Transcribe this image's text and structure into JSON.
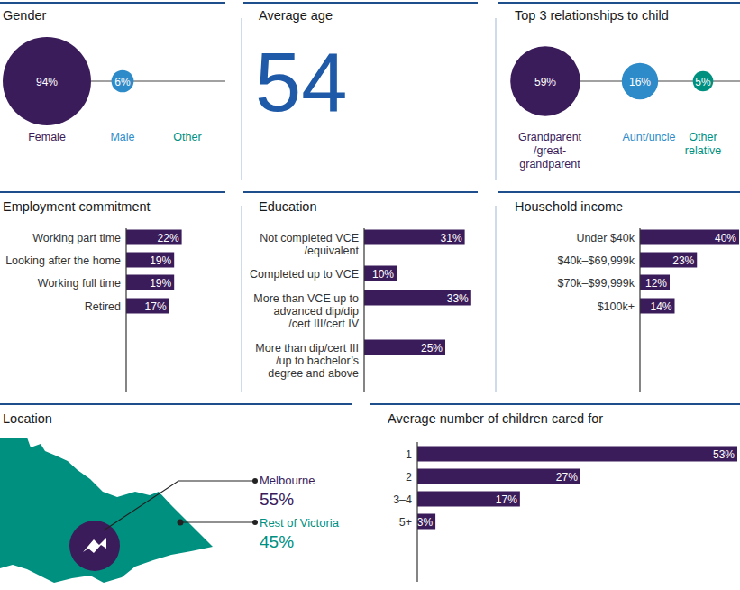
{
  "chart_data": [
    {
      "type": "bubble",
      "title": "Gender",
      "categories": [
        "Female",
        "Male",
        "Other"
      ],
      "values": [
        94,
        6,
        null
      ],
      "value_labels": [
        "94%",
        "6%",
        null
      ],
      "colors": [
        "#3b1c5a",
        "#2e8bc9",
        "#00907f"
      ],
      "data_labels": true
    },
    {
      "type": "stat",
      "title": "Average age",
      "value": 54,
      "color": "#1f5aa8"
    },
    {
      "type": "bubble",
      "title": "Top 3 relationships to child",
      "categories": [
        "Grandparent\n/great-\ngrandparent",
        "Aunt/uncle",
        "Other\nrelative"
      ],
      "values": [
        59,
        16,
        5
      ],
      "value_labels": [
        "59%",
        "16%",
        "5%"
      ],
      "colors": [
        "#3b1c5a",
        "#2e8bc9",
        "#00907f"
      ],
      "data_labels": true
    },
    {
      "type": "bar",
      "orientation": "horizontal",
      "title": "Employment commitment",
      "categories": [
        "Working part time",
        "Looking after the home",
        "Working full time",
        "Retired"
      ],
      "values": [
        22,
        19,
        19,
        17
      ],
      "value_labels": [
        "22%",
        "19%",
        "19%",
        "17%"
      ],
      "color": "#3b1c5a",
      "xlim": [
        0,
        40
      ],
      "tick_labels": false,
      "data_labels": true
    },
    {
      "type": "bar",
      "orientation": "horizontal",
      "title": "Education",
      "categories": [
        "Not completed VCE\n/equivalent",
        "Completed up to VCE",
        "More than VCE up to\nadvanced dip/dip\n/cert III/cert IV",
        "More than dip/cert III\n/up to bachelor’s\ndegree and above"
      ],
      "values": [
        31,
        10,
        33,
        25
      ],
      "value_labels": [
        "31%",
        "10%",
        "33%",
        "25%"
      ],
      "color": "#3b1c5a",
      "xlim": [
        0,
        35
      ],
      "tick_labels": false,
      "data_labels": true
    },
    {
      "type": "bar",
      "orientation": "horizontal",
      "title": "Household income",
      "categories": [
        "Under $40k",
        "$40k–$69,999k",
        "$70k–$99,999k",
        "$100k+"
      ],
      "values": [
        40,
        23,
        12,
        14
      ],
      "value_labels": [
        "40%",
        "23%",
        "12%",
        "14%"
      ],
      "color": "#3b1c5a",
      "xlim": [
        0,
        40
      ],
      "tick_labels": false,
      "data_labels": true
    },
    {
      "type": "map",
      "title": "Location",
      "categories": [
        "Melbourne",
        "Rest of Victoria"
      ],
      "values": [
        55,
        45
      ],
      "value_labels": [
        "55%",
        "45%"
      ],
      "colors": [
        "#3b1c5a",
        "#00907f"
      ],
      "data_labels": true
    },
    {
      "type": "bar",
      "orientation": "horizontal",
      "title": "Average number of children cared for",
      "categories": [
        "1",
        "2",
        "3–4",
        "5+"
      ],
      "values": [
        53,
        27,
        17,
        3
      ],
      "value_labels": [
        "53%",
        "27%",
        "17%",
        "3%"
      ],
      "color": "#3b1c5a",
      "xlim": [
        0,
        53
      ],
      "tick_labels": false,
      "data_labels": true
    }
  ]
}
